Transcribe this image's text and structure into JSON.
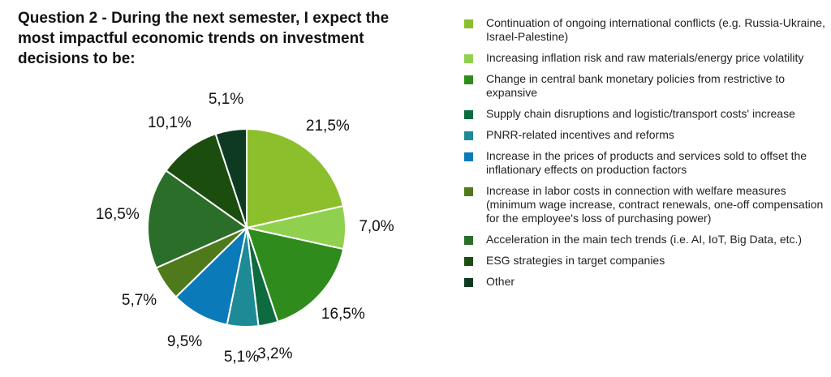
{
  "chart_data": {
    "type": "pie",
    "title": "Question 2 - During the next semester, I expect the most impactful economic trends on investment decisions to be:",
    "start_angle_deg": 0,
    "direction": "clockwise",
    "legend_position": "right",
    "slices": [
      {
        "label": "Continuation of ongoing international conflicts (e.g. Russia-Ukraine, Israel-Palestine)",
        "value": 21.5,
        "display": "21,5%",
        "color": "#8bbf2c"
      },
      {
        "label": "Increasing inflation risk and raw materials/energy price volatility",
        "value": 7.0,
        "display": "7,0%",
        "color": "#8fd14f"
      },
      {
        "label": "Change in central bank monetary policies from restrictive to expansive",
        "value": 16.5,
        "display": "16,5%",
        "color": "#2e8b1c"
      },
      {
        "label": "Supply chain disruptions and logistic/transport costs' increase",
        "value": 3.2,
        "display": "3,2%",
        "color": "#0d6b3f"
      },
      {
        "label": "PNRR-related incentives and reforms",
        "value": 5.1,
        "display": "5,1%",
        "color": "#1d8a96"
      },
      {
        "label": "Increase in the prices of products and services sold to offset the inflationary effects on production factors",
        "value": 9.5,
        "display": "9,5%",
        "color": "#0a7ab8"
      },
      {
        "label": "Increase in labor costs in connection with welfare measures (minimum wage increase, contract renewals, one-off compensation for the employee's loss of purchasing power)",
        "value": 5.7,
        "display": "5,7%",
        "color": "#4f7a1c"
      },
      {
        "label": "Acceleration in the main tech trends (i.e. AI, IoT, Big Data, etc.)",
        "value": 16.5,
        "display": "16,5%",
        "color": "#2a6e2a"
      },
      {
        "label": "ESG strategies in target companies",
        "value": 10.1,
        "display": "10,1%",
        "color": "#1b4d0e"
      },
      {
        "label": "Other",
        "value": 5.1,
        "display": "5,1%",
        "color": "#0f3a22"
      }
    ]
  }
}
